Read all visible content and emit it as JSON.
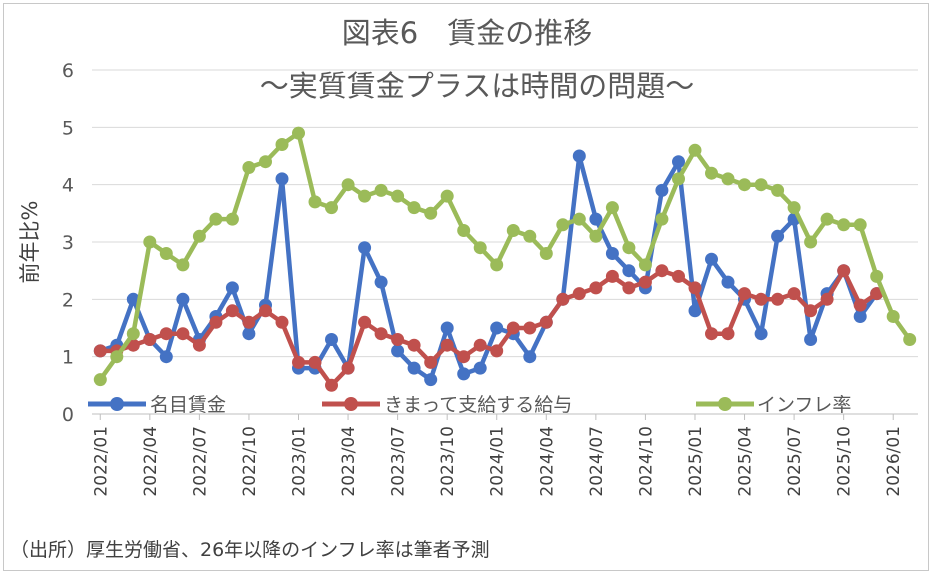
{
  "chart_data": {
    "type": "line",
    "title": "図表6　賃金の推移",
    "subtitle": "～実質賃金プラスは時間の問題～",
    "ylabel": "前年比%",
    "xlabel": "",
    "ylim": [
      0,
      6
    ],
    "yticks": [
      "0",
      "1",
      "2",
      "3",
      "4",
      "5",
      "6"
    ],
    "grid": true,
    "legend_position": "bottom",
    "x_tick_labels": [
      "2022/01",
      "2022/04",
      "2022/07",
      "2022/10",
      "2023/01",
      "2023/04",
      "2023/07",
      "2023/10",
      "2024/01",
      "2024/04",
      "2024/07",
      "2024/10",
      "2025/01",
      "2025/04",
      "2025/07",
      "2025/10",
      "2026/01"
    ],
    "x_tick_index": [
      0,
      3,
      6,
      9,
      12,
      15,
      18,
      21,
      24,
      27,
      30,
      33,
      36,
      39,
      42,
      45,
      48
    ],
    "n_points": 50,
    "series": [
      {
        "name": "名目賃金",
        "color": "#4472c4",
        "values": [
          1.1,
          1.2,
          2.0,
          1.3,
          1.0,
          2.0,
          1.3,
          1.7,
          2.2,
          1.4,
          1.9,
          4.1,
          0.8,
          0.8,
          1.3,
          0.8,
          2.9,
          2.3,
          1.1,
          0.8,
          0.6,
          1.5,
          0.7,
          0.8,
          1.5,
          1.4,
          1.0,
          1.6,
          2.0,
          4.5,
          3.4,
          2.8,
          2.5,
          2.2,
          3.9,
          4.4,
          1.8,
          2.7,
          2.3,
          2.0,
          1.4,
          3.1,
          3.4,
          1.3,
          2.1,
          2.5,
          1.7,
          2.1
        ]
      },
      {
        "name": "きまって支給する給与",
        "color": "#c0504d",
        "values": [
          1.1,
          1.1,
          1.2,
          1.3,
          1.4,
          1.4,
          1.2,
          1.6,
          1.8,
          1.6,
          1.8,
          1.6,
          0.9,
          0.9,
          0.5,
          0.8,
          1.6,
          1.4,
          1.3,
          1.2,
          0.9,
          1.2,
          1.0,
          1.2,
          1.1,
          1.5,
          1.5,
          1.6,
          2.0,
          2.1,
          2.2,
          2.4,
          2.2,
          2.3,
          2.5,
          2.4,
          2.2,
          1.4,
          1.4,
          2.1,
          2.0,
          2.0,
          2.1,
          1.8,
          2.0,
          2.5,
          1.9,
          2.1
        ]
      },
      {
        "name": "インフレ率",
        "color": "#9bbb59",
        "values": [
          0.6,
          1.0,
          1.4,
          3.0,
          2.8,
          2.6,
          3.1,
          3.4,
          3.4,
          4.3,
          4.4,
          4.7,
          4.9,
          3.7,
          3.6,
          4.0,
          3.8,
          3.9,
          3.8,
          3.6,
          3.5,
          3.8,
          3.2,
          2.9,
          2.6,
          3.2,
          3.1,
          2.8,
          3.3,
          3.4,
          3.1,
          3.6,
          2.9,
          2.6,
          3.4,
          4.1,
          4.6,
          4.2,
          4.1,
          4.0,
          4.0,
          3.9,
          3.6,
          3.0,
          3.4,
          3.3,
          3.3,
          2.4,
          1.7,
          1.3
        ]
      }
    ],
    "source_note": "（出所）厚生労働省、26年以降のインフレ率は筆者予測"
  }
}
